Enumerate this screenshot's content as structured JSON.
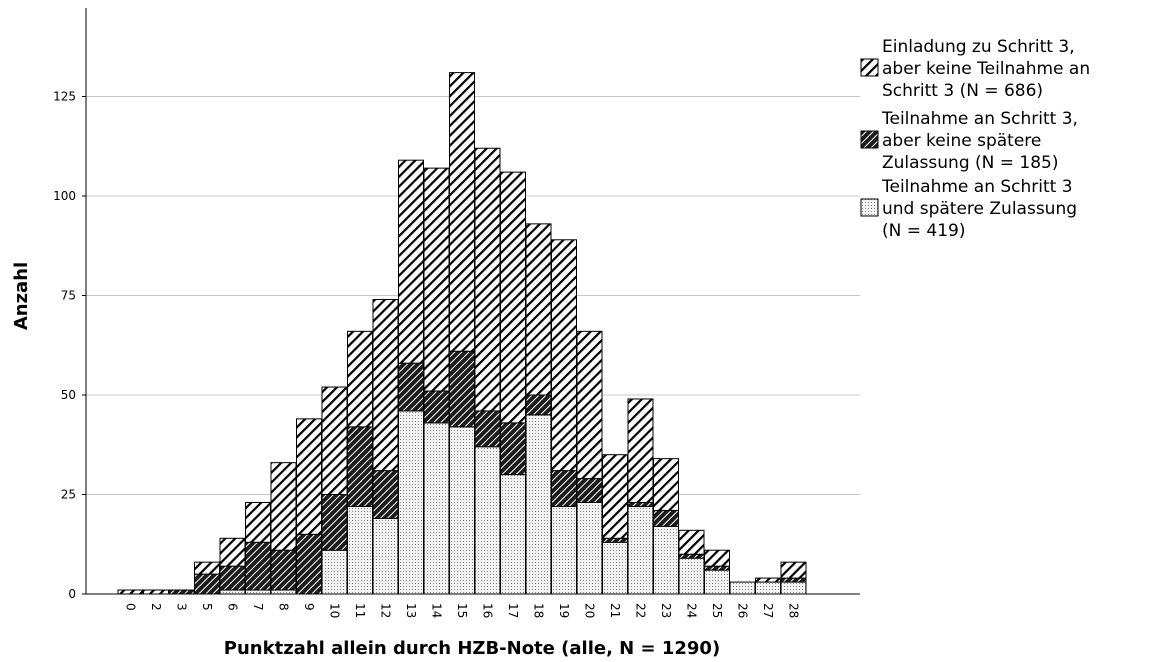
{
  "chart_data": {
    "type": "bar",
    "stacked": true,
    "xlabel": "Punktzahl allein durch HZB-Note (alle, N = 1290)",
    "ylabel": "Anzahl",
    "categories": [
      "0",
      "2",
      "3",
      "5",
      "6",
      "7",
      "8",
      "9",
      "10",
      "11",
      "12",
      "13",
      "14",
      "15",
      "16",
      "17",
      "18",
      "19",
      "20",
      "21",
      "22",
      "23",
      "24",
      "25",
      "26",
      "27",
      "28"
    ],
    "ylim": [
      0,
      150
    ],
    "yticks": [
      0,
      25,
      50,
      75,
      100,
      125
    ],
    "grid": true,
    "legend_position": "right",
    "series": [
      {
        "name": "Teilnahme an Schritt 3 und spätere Zulassung (N = 419)",
        "legend_lines": [
          "Teilnahme an Schritt 3",
          "und spätere Zulassung",
          "(N = 419)"
        ],
        "pattern": "dots",
        "values": [
          0,
          0,
          0,
          0,
          1,
          1,
          1,
          0,
          11,
          22,
          19,
          46,
          43,
          42,
          37,
          30,
          45,
          22,
          23,
          13,
          22,
          17,
          9,
          6,
          3,
          3,
          3
        ]
      },
      {
        "name": "Teilnahme an Schritt 3, aber keine spätere Zulassung (N = 185)",
        "legend_lines": [
          "Teilnahme an Schritt 3,",
          "aber keine spätere",
          "Zulassung (N = 185)"
        ],
        "pattern": "dark-hatch",
        "values": [
          0,
          0,
          1,
          5,
          6,
          12,
          10,
          15,
          14,
          20,
          12,
          12,
          8,
          19,
          9,
          13,
          5,
          9,
          6,
          1,
          1,
          4,
          1,
          1,
          0,
          0,
          1
        ]
      },
      {
        "name": "Einladung zu Schritt 3, aber keine Teilnahme an Schritt 3 (N = 686)",
        "legend_lines": [
          "Einladung zu Schritt 3,",
          "aber keine Teilnahme an",
          "Schritt 3 (N = 686)"
        ],
        "pattern": "light-hatch",
        "values": [
          1,
          1,
          0,
          3,
          7,
          10,
          22,
          29,
          27,
          24,
          43,
          51,
          56,
          70,
          66,
          63,
          43,
          58,
          37,
          21,
          26,
          13,
          6,
          4,
          0,
          1,
          4
        ]
      }
    ]
  },
  "colors": {
    "bar_outline": "#000000",
    "grid": "#c8c8c8",
    "axis": "#000000"
  }
}
